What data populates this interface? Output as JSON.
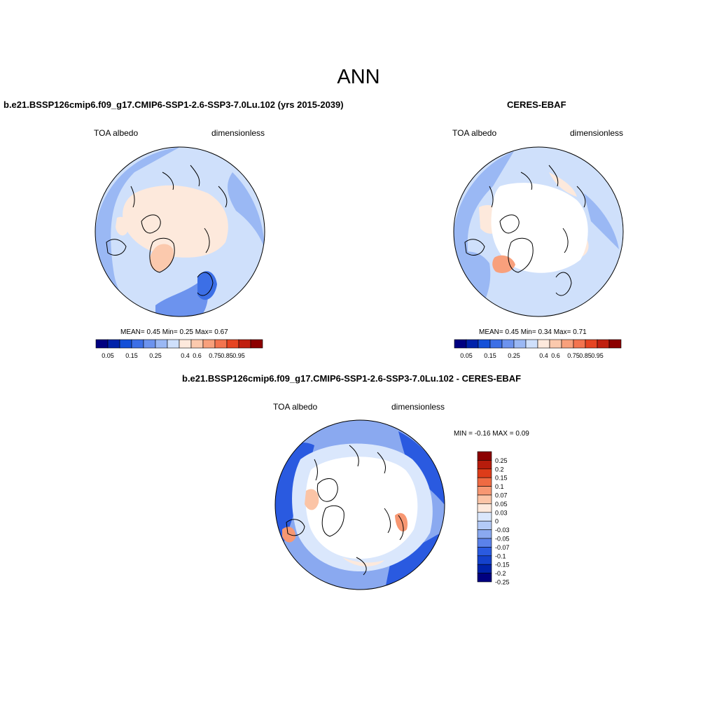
{
  "main_title": "ANN",
  "colors": {
    "absolute_scale": [
      "#000080",
      "#0022aa",
      "#1450d8",
      "#3c6fe6",
      "#6c93ee",
      "#9ab8f4",
      "#cfe0fb",
      "#fde9dc",
      "#fbc9ad",
      "#f8a07c",
      "#f3744f",
      "#e64422",
      "#c02010",
      "#8c0000"
    ],
    "difference_scale": [
      "#000080",
      "#0022aa",
      "#1441cc",
      "#2a5ae0",
      "#5b82ea",
      "#8aa9f0",
      "#b3caf7",
      "#dae7fc",
      "#fde9dc",
      "#fbc4a6",
      "#f79772",
      "#ef6a42",
      "#dd3c19",
      "#b71c0c",
      "#8c0000"
    ],
    "coast": "#000000",
    "ocean_base": "#d6e7fc",
    "ice": "#ffffff"
  },
  "panels": {
    "model": {
      "title": "b.e21.BSSP126cmip6.f09_g17.CMIP6-SSP1-2.6-SSP3-7.0Lu.102 (yrs 2015-2039)",
      "variable": "TOA albedo",
      "units": "dimensionless",
      "stats": "MEAN=   0.45  Min=   0.25  Max=   0.67"
    },
    "obs": {
      "title": "CERES-EBAF",
      "variable": "TOA albedo",
      "units": "dimensionless",
      "stats": "MEAN=   0.45  Min=   0.34  Max=   0.71"
    },
    "diff": {
      "title": "b.e21.BSSP126cmip6.f09_g17.CMIP6-SSP1-2.6-SSP3-7.0Lu.102 - CERES-EBAF",
      "variable": "TOA albedo",
      "units": "dimensionless",
      "stats": "MIN =  -0.16 MAX =   0.09"
    }
  },
  "chart_data": [
    {
      "type": "heatmap",
      "projection": "north-polar-stereographic",
      "title": "b.e21.BSSP126cmip6.f09_g17.CMIP6-SSP1-2.6-SSP3-7.0Lu.102 (yrs 2015-2039)",
      "variable": "TOA albedo",
      "units": "dimensionless",
      "mean": 0.45,
      "min": 0.25,
      "max": 0.67,
      "colorbar_levels": [
        "0.05",
        "0.15",
        "0.25",
        "0.4",
        "0.6",
        "0.75",
        "0.85",
        "0.95"
      ]
    },
    {
      "type": "heatmap",
      "projection": "north-polar-stereographic",
      "title": "CERES-EBAF",
      "variable": "TOA albedo",
      "units": "dimensionless",
      "mean": 0.45,
      "min": 0.34,
      "max": 0.71,
      "colorbar_levels": [
        "0.05",
        "0.15",
        "0.25",
        "0.4",
        "0.6",
        "0.75",
        "0.85",
        "0.95"
      ]
    },
    {
      "type": "heatmap",
      "projection": "north-polar-stereographic",
      "title": "b.e21.BSSP126cmip6.f09_g17.CMIP6-SSP1-2.6-SSP3-7.0Lu.102 - CERES-EBAF",
      "variable": "TOA albedo",
      "units": "dimensionless",
      "min": -0.16,
      "max": 0.09,
      "colorbar_levels": [
        "0.25",
        "0.2",
        "0.15",
        "0.1",
        "0.07",
        "0.05",
        "0.03",
        "0",
        "-0.03",
        "-0.05",
        "-0.07",
        "-0.1",
        "-0.15",
        "-0.2",
        "-0.25"
      ]
    }
  ]
}
